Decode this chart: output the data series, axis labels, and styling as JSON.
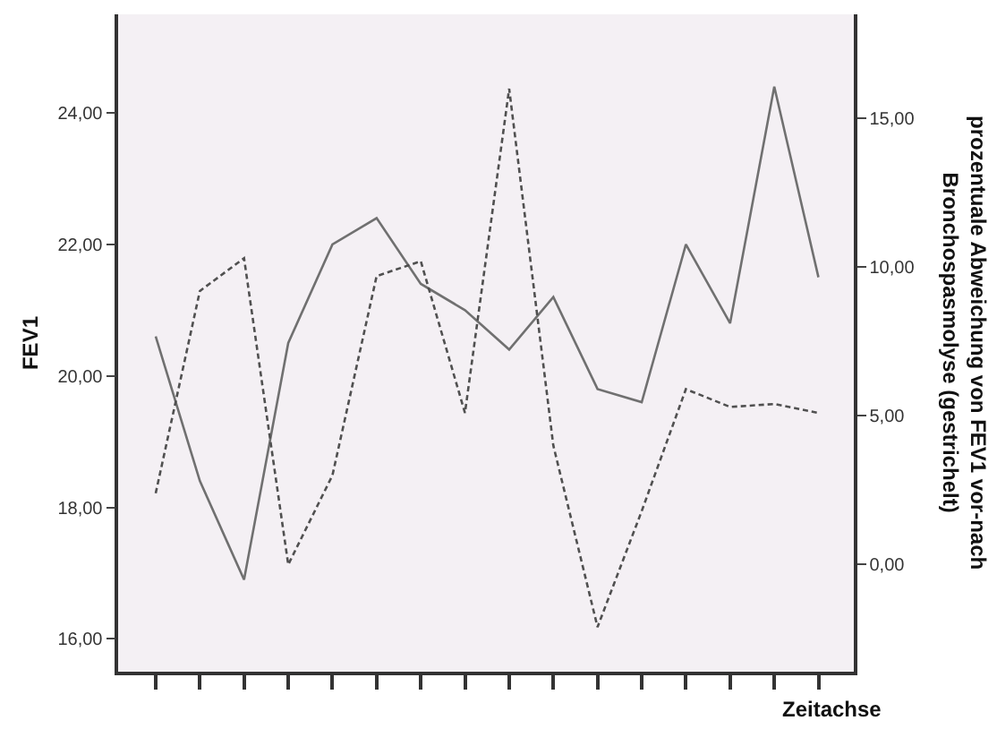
{
  "chart_data": {
    "type": "line",
    "xlabel": "Zeitachse",
    "ylabel": "FEV1",
    "y2label": "prozentuale Abweichung von FEV1 vor-nach Bronchospasmolyse (gestrichelt)",
    "categories": [
      null,
      null,
      null,
      null,
      null,
      null,
      null,
      null,
      null,
      null,
      null,
      null,
      null,
      null,
      null,
      null
    ],
    "series": [
      {
        "color": "#707070",
        "line_style": "solid",
        "values": [
          20.6,
          18.4,
          16.9,
          20.5,
          22.0,
          22.4,
          21.4,
          21.0,
          20.4,
          21.2,
          19.8,
          19.6,
          22.0,
          20.8,
          24.4,
          21.5
        ]
      },
      {
        "color": "#505050",
        "line_style": "dashed",
        "axis": "y2",
        "values": [
          2.4,
          9.2,
          10.3,
          0.0,
          3.0,
          9.7,
          10.2,
          5.1,
          16.0,
          4.0,
          -2.1,
          1.8,
          5.9,
          5.3,
          5.4,
          5.1
        ]
      }
    ],
    "ylim": [
      15.5,
      25.5
    ],
    "yticks": [
      {
        "value": 16,
        "label": "16,00"
      },
      {
        "value": 18,
        "label": "18,00"
      },
      {
        "value": 20,
        "label": "20,00"
      },
      {
        "value": 22,
        "label": "22,00"
      },
      {
        "value": 24,
        "label": "24,00"
      }
    ],
    "y2lim": [
      -3.6,
      18.5
    ],
    "y2ticks": [
      {
        "value": 0,
        "label": "0,00"
      },
      {
        "value": 5,
        "label": "5,00"
      },
      {
        "value": 10,
        "label": "10,00"
      },
      {
        "value": 15,
        "label": "15,00"
      }
    ],
    "grid": false,
    "legend": false,
    "marker": "none"
  }
}
